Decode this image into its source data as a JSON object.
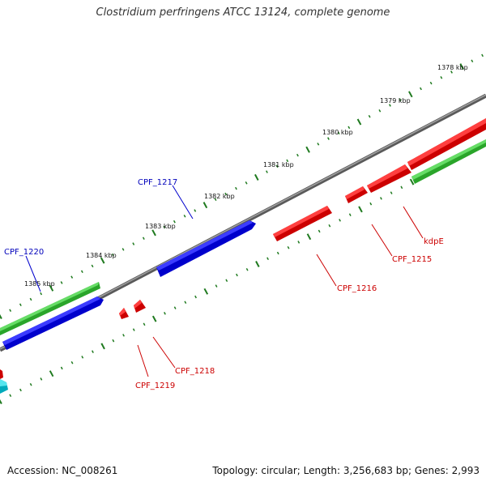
{
  "title": "Clostridium perfringens ATCC 13124, complete genome",
  "footer": {
    "accession": "Accession: NC_008261",
    "summary": "Topology: circular; Length: 3,256,683 bp; Genes: 2,993"
  },
  "colors": {
    "backbone": "#7a7a7a",
    "ticks": "#1f7a1f",
    "forward_label": "#0000bb",
    "reverse_label": "#cc0000",
    "blue": "#0000ee",
    "red": "#ee0000",
    "green": "#33bb33",
    "cyan": "#00bbcc"
  },
  "ruler": {
    "unit": "kbp",
    "labels": [
      "1378 kbp",
      "1379 kbp",
      "1380 kbp",
      "1381 kbp",
      "1382 kbp",
      "1383 kbp",
      "1384 kbp",
      "1385 kbp"
    ]
  },
  "genes": [
    {
      "name": "CPF_1217",
      "color": "blue"
    },
    {
      "name": "CPF_1220",
      "color": "blue"
    },
    {
      "name": "CPF_1216",
      "color": "red"
    },
    {
      "name": "CPF_1215",
      "color": "red"
    },
    {
      "name": "kdpE",
      "color": "red"
    },
    {
      "name": "CPF_1218",
      "color": "red"
    },
    {
      "name": "CPF_1219",
      "color": "red"
    }
  ]
}
